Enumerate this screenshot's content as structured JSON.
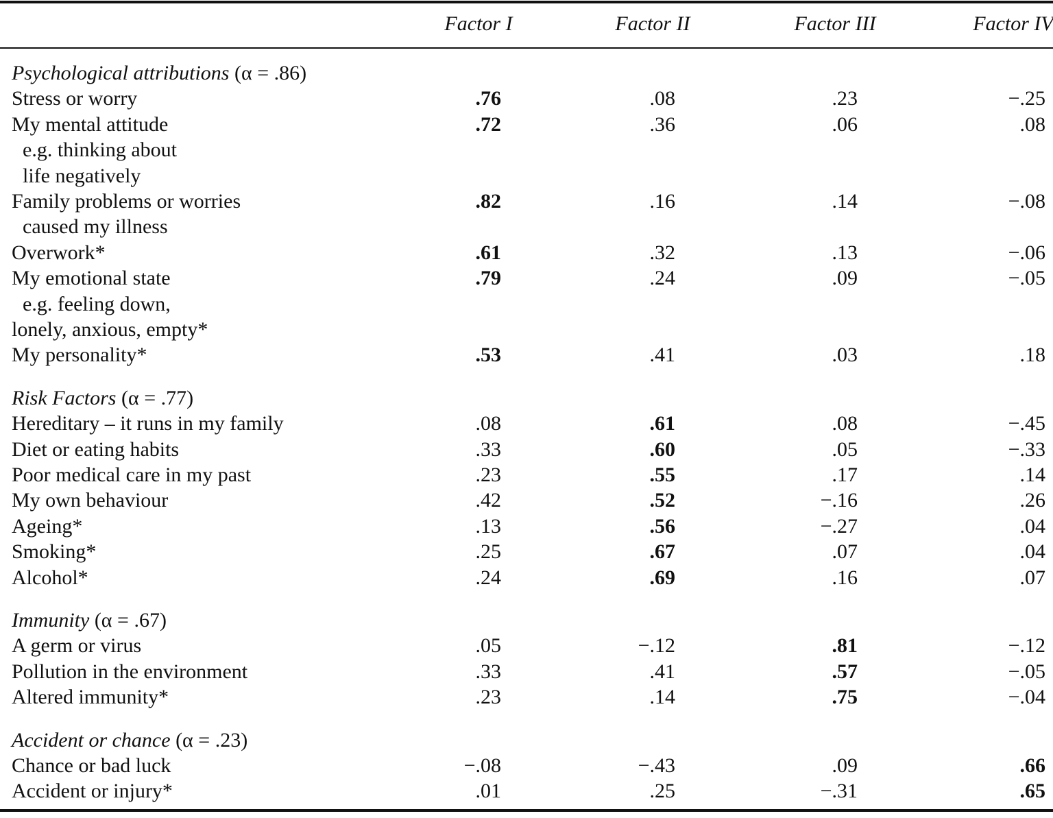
{
  "header": {
    "columns": [
      "Factor I",
      "Factor II",
      "Factor III",
      "Factor IV"
    ]
  },
  "groups": [
    {
      "title": "Psychological attributions",
      "alpha": "(α = .86)",
      "bold_column": 0,
      "items": [
        {
          "lines": [
            "Stress or worry"
          ],
          "values": [
            ".76",
            ".08",
            ".23",
            "−.25"
          ]
        },
        {
          "lines": [
            "My mental attitude",
            "e.g. thinking about",
            "life negatively"
          ],
          "values": [
            ".72",
            ".36",
            ".06",
            ".08"
          ]
        },
        {
          "lines": [
            "Family problems or worries",
            "caused my illness"
          ],
          "values": [
            ".82",
            ".16",
            ".14",
            "−.08"
          ]
        },
        {
          "lines": [
            "Overwork*"
          ],
          "values": [
            ".61",
            ".32",
            ".13",
            "−.06"
          ]
        },
        {
          "lines": [
            "My emotional state",
            "e.g. feeling down,",
            "lonely, anxious, empty*"
          ],
          "values": [
            ".79",
            ".24",
            ".09",
            "−.05"
          ]
        },
        {
          "lines": [
            "My personality*"
          ],
          "values": [
            ".53",
            ".41",
            ".03",
            ".18"
          ]
        }
      ]
    },
    {
      "title": "Risk Factors",
      "alpha": "(α = .77)",
      "bold_column": 1,
      "items": [
        {
          "lines": [
            "Hereditary – it runs in my family"
          ],
          "values": [
            ".08",
            ".61",
            ".08",
            "−.45"
          ]
        },
        {
          "lines": [
            "Diet or eating habits"
          ],
          "values": [
            ".33",
            ".60",
            ".05",
            "−.33"
          ]
        },
        {
          "lines": [
            "Poor medical care in my past"
          ],
          "values": [
            ".23",
            ".55",
            ".17",
            ".14"
          ]
        },
        {
          "lines": [
            "My own behaviour"
          ],
          "values": [
            ".42",
            ".52",
            "−.16",
            ".26"
          ]
        },
        {
          "lines": [
            "Ageing*"
          ],
          "values": [
            ".13",
            ".56",
            "−.27",
            ".04"
          ]
        },
        {
          "lines": [
            "Smoking*"
          ],
          "values": [
            ".25",
            ".67",
            ".07",
            ".04"
          ]
        },
        {
          "lines": [
            "Alcohol*"
          ],
          "values": [
            ".24",
            ".69",
            ".16",
            ".07"
          ]
        }
      ]
    },
    {
      "title": "Immunity",
      "alpha": "(α = .67)",
      "bold_column": 2,
      "items": [
        {
          "lines": [
            "A germ or virus"
          ],
          "values": [
            ".05",
            "−.12",
            ".81",
            "−.12"
          ]
        },
        {
          "lines": [
            "Pollution in the environment"
          ],
          "values": [
            ".33",
            ".41",
            ".57",
            "−.05"
          ]
        },
        {
          "lines": [
            "Altered immunity*"
          ],
          "values": [
            ".23",
            ".14",
            ".75",
            "−.04"
          ]
        }
      ]
    },
    {
      "title": "Accident or chance",
      "alpha": "(α = .23)",
      "bold_column": 3,
      "items": [
        {
          "lines": [
            "Chance or bad luck"
          ],
          "values": [
            "−.08",
            "−.43",
            ".09",
            ".66"
          ]
        },
        {
          "lines": [
            "Accident or injury*"
          ],
          "values": [
            ".01",
            ".25",
            "−.31",
            ".65"
          ]
        }
      ]
    }
  ]
}
